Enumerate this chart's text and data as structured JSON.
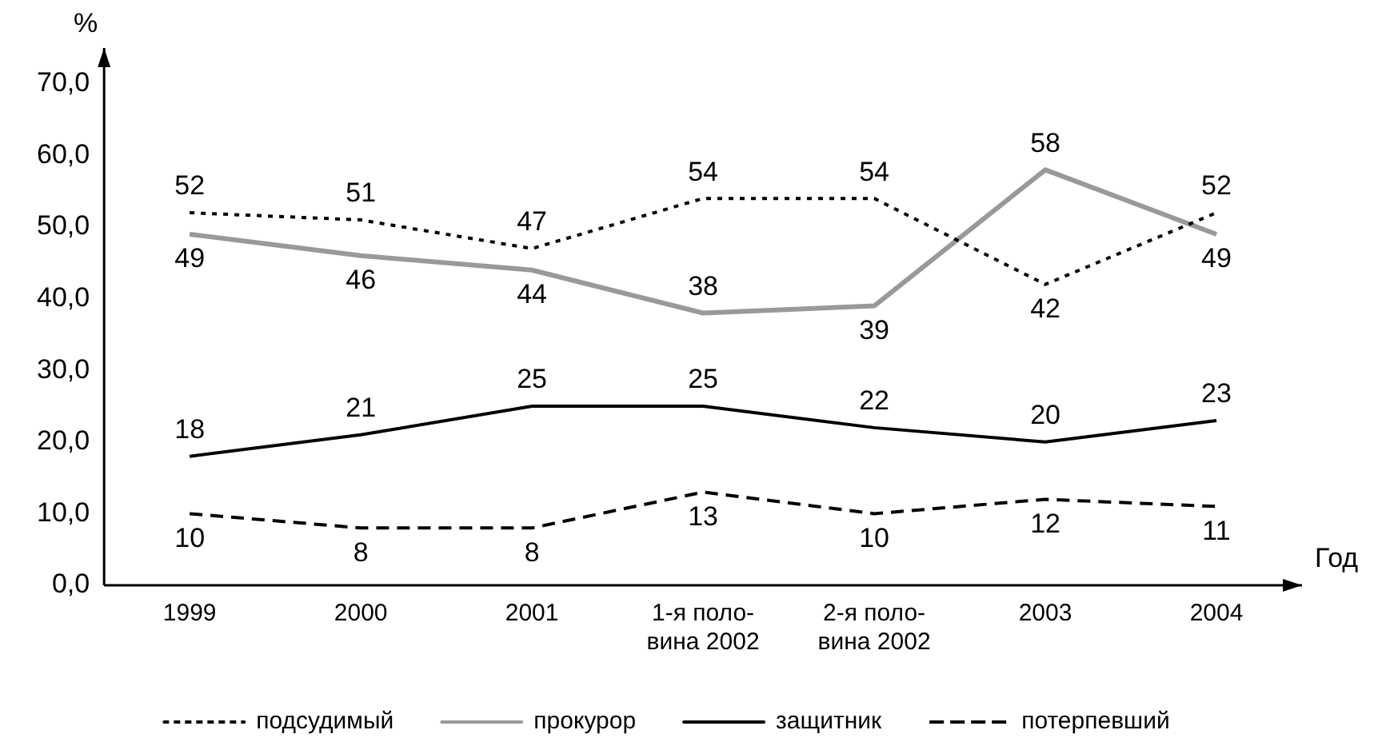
{
  "chart_data": {
    "type": "line",
    "xlabel": "Год",
    "ylabel": "%",
    "categories": [
      "1999",
      "2000",
      "2001",
      "1-я поло-\nвина 2002",
      "2-я поло-\nвина 2002",
      "2003",
      "2004"
    ],
    "series": [
      {
        "name": "подсудимый",
        "color": "#000000",
        "line_style": "dotted",
        "values": [
          52,
          51,
          47,
          54,
          54,
          42,
          52
        ]
      },
      {
        "name": "прокурор",
        "color": "#999999",
        "line_style": "solid",
        "values": [
          49,
          46,
          44,
          38,
          39,
          58,
          49
        ]
      },
      {
        "name": "защитник",
        "color": "#000000",
        "line_style": "solid",
        "values": [
          18,
          21,
          25,
          25,
          22,
          20,
          23
        ]
      },
      {
        "name": "потерпевший",
        "color": "#000000",
        "line_style": "dashed",
        "values": [
          10,
          8,
          8,
          13,
          10,
          12,
          11
        ]
      }
    ],
    "ylim": [
      0,
      75
    ],
    "yticks": [
      {
        "value": 0,
        "label": "0,0"
      },
      {
        "value": 10,
        "label": "10,0"
      },
      {
        "value": 20,
        "label": "20,0"
      },
      {
        "value": 30,
        "label": "30,0"
      },
      {
        "value": 40,
        "label": "40,0"
      },
      {
        "value": 50,
        "label": "50,0"
      },
      {
        "value": 60,
        "label": "60,0"
      },
      {
        "value": 70,
        "label": "70,0"
      }
    ],
    "grid": false,
    "legend": "bottom",
    "marker": "none",
    "data_labels": true
  }
}
